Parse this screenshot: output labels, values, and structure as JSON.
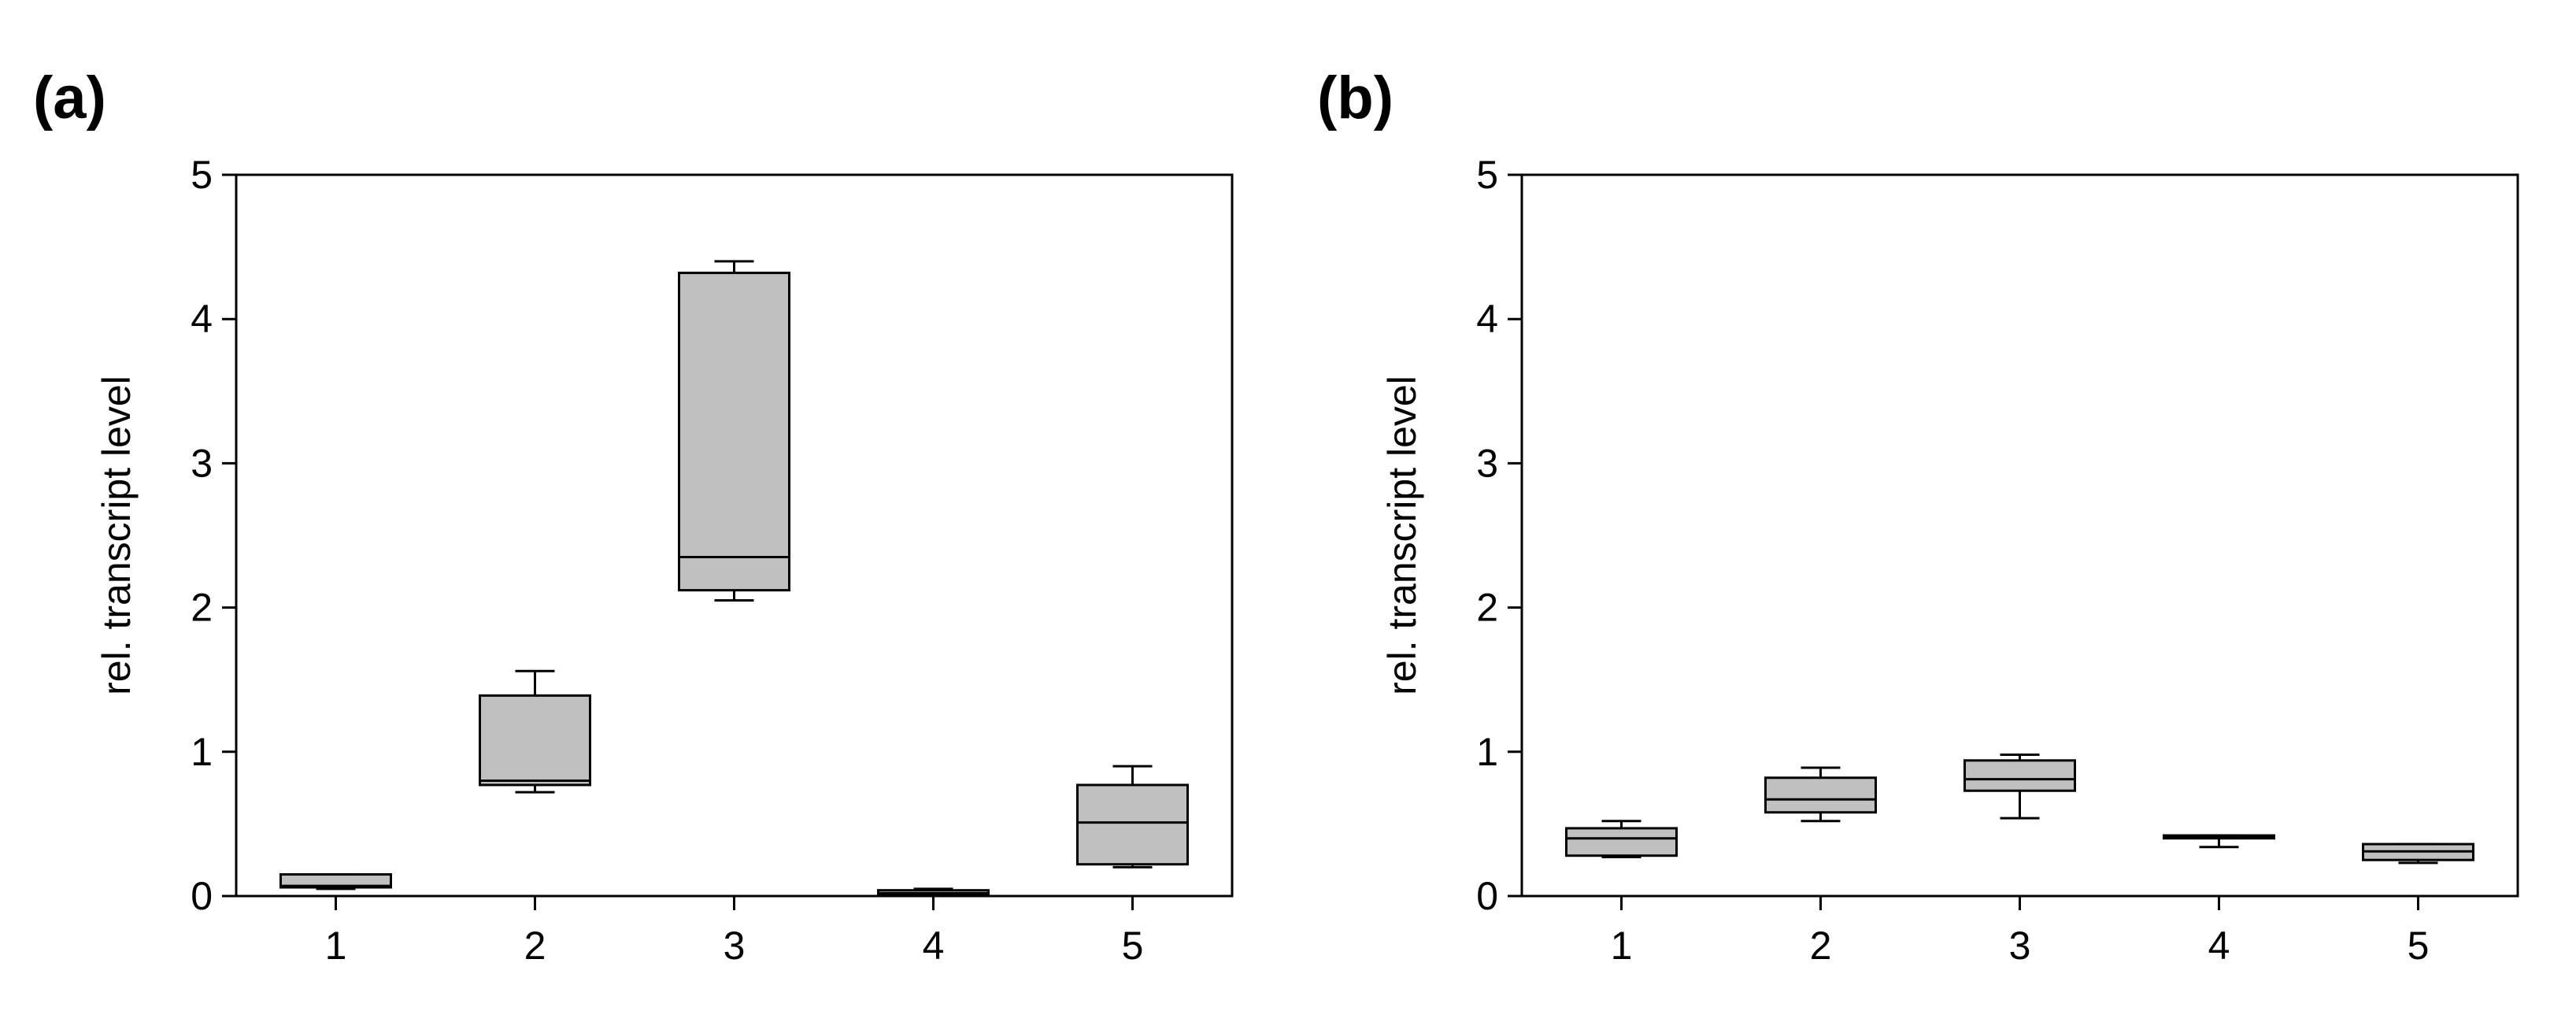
{
  "colors": {
    "box_fill": "#c0c0c0",
    "line": "#000000",
    "background": "#ffffff"
  },
  "chart_data": [
    {
      "panel_label": "(a)",
      "type": "box",
      "title": "",
      "xlabel": "",
      "ylabel": "rel. transcript level",
      "categories": [
        "1",
        "2",
        "3",
        "4",
        "5"
      ],
      "ylim": [
        0,
        5
      ],
      "yticks": [
        "0",
        "1",
        "2",
        "3",
        "4",
        "5"
      ],
      "grid": false,
      "boxes": [
        {
          "category": "1",
          "min": 0.05,
          "q1": 0.06,
          "median": 0.07,
          "q3": 0.15,
          "max": 0.15
        },
        {
          "category": "2",
          "min": 0.72,
          "q1": 0.77,
          "median": 0.8,
          "q3": 1.39,
          "max": 1.56
        },
        {
          "category": "3",
          "min": 2.05,
          "q1": 2.12,
          "median": 2.35,
          "q3": 4.32,
          "max": 4.4
        },
        {
          "category": "4",
          "min": 0.0,
          "q1": 0.01,
          "median": 0.02,
          "q3": 0.04,
          "max": 0.05
        },
        {
          "category": "5",
          "min": 0.2,
          "q1": 0.22,
          "median": 0.51,
          "q3": 0.77,
          "max": 0.9
        }
      ]
    },
    {
      "panel_label": "(b)",
      "type": "box",
      "title": "",
      "xlabel": "",
      "ylabel": "rel. transcript level",
      "categories": [
        "1",
        "2",
        "3",
        "4",
        "5"
      ],
      "ylim": [
        0,
        5
      ],
      "yticks": [
        "0",
        "1",
        "2",
        "3",
        "4",
        "5"
      ],
      "grid": false,
      "boxes": [
        {
          "category": "1",
          "min": 0.27,
          "q1": 0.28,
          "median": 0.4,
          "q3": 0.47,
          "max": 0.52
        },
        {
          "category": "2",
          "min": 0.52,
          "q1": 0.58,
          "median": 0.67,
          "q3": 0.82,
          "max": 0.89
        },
        {
          "category": "3",
          "min": 0.54,
          "q1": 0.73,
          "median": 0.81,
          "q3": 0.94,
          "max": 0.98
        },
        {
          "category": "4",
          "min": 0.34,
          "q1": 0.4,
          "median": 0.41,
          "q3": 0.42,
          "max": 0.42
        },
        {
          "category": "5",
          "min": 0.23,
          "q1": 0.25,
          "median": 0.31,
          "q3": 0.36,
          "max": 0.36
        }
      ]
    }
  ]
}
